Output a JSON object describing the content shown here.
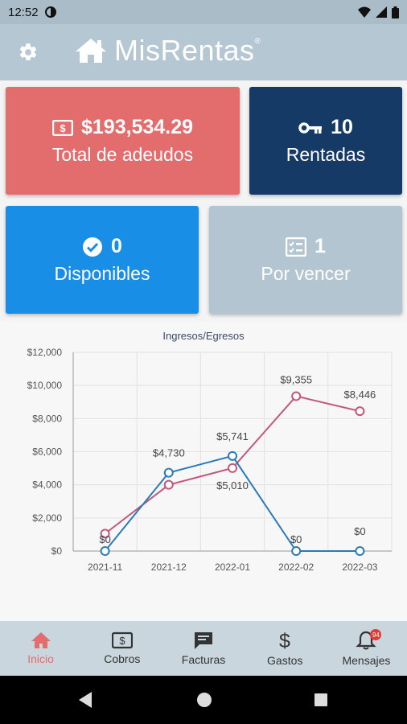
{
  "statusbar": {
    "time": "12:52"
  },
  "app": {
    "title": "MisRentas",
    "reg": "®"
  },
  "cards": {
    "adeudos": {
      "value": "$193,534.29",
      "label": "Total de adeudos",
      "icon": "cash-icon"
    },
    "rentadas": {
      "value": "10",
      "label": "Rentadas",
      "icon": "key-icon"
    },
    "disponibles": {
      "value": "0",
      "label": "Disponibles",
      "icon": "check-circle-icon"
    },
    "porvencer": {
      "value": "1",
      "label": "Por vencer",
      "icon": "checklist-icon"
    }
  },
  "chart_data": {
    "type": "line",
    "title": "Ingresos/Egresos",
    "categories": [
      "2021-11",
      "2021-12",
      "2022-01",
      "2022-02",
      "2022-03"
    ],
    "ylim": [
      0,
      12000
    ],
    "yticks": [
      "$0",
      "$2,000",
      "$4,000",
      "$6,000",
      "$8,000",
      "$10,000",
      "$12,000"
    ],
    "series": [
      {
        "color": "#c2577a",
        "values": [
          1050,
          4000,
          5010,
          9355,
          8446
        ],
        "labels": [
          "",
          "",
          "$5,010",
          "$9,355",
          "$8,446"
        ]
      },
      {
        "color": "#2a7ab9",
        "values": [
          0,
          4730,
          5741,
          0,
          0
        ],
        "labels": [
          "$0",
          "$4,730",
          "$5,741",
          "$0",
          "$0"
        ]
      }
    ]
  },
  "nav": {
    "inicio": "Inicio",
    "cobros": "Cobros",
    "facturas": "Facturas",
    "gastos": "Gastos",
    "mensajes": "Mensajes",
    "badge": "94"
  },
  "colors": {
    "accent": "#e36c6c",
    "navy": "#163a66",
    "blue": "#198ee6",
    "grey": "#b3c5d1"
  }
}
